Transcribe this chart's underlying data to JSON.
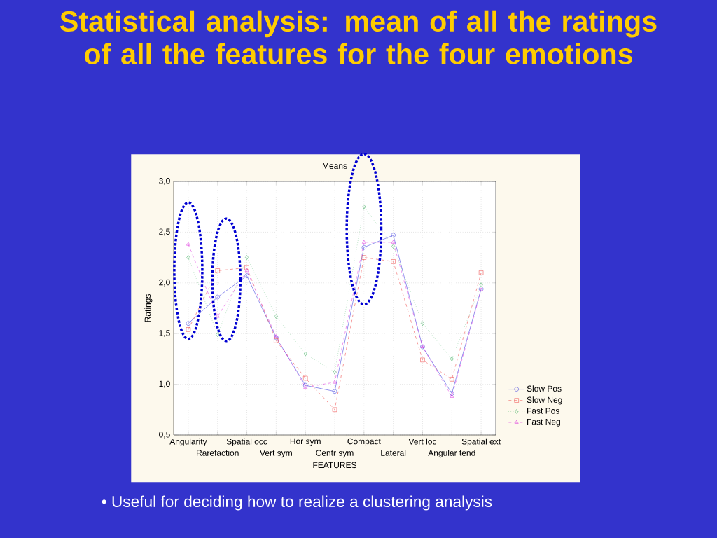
{
  "chart_data": {
    "type": "line",
    "title": "Statistical analysis: mean of all the ratings of all the features for the four emotions",
    "subtitle": "Means",
    "xlabel": "FEATURES",
    "ylabel": "Ratings",
    "categories": [
      "Angularity",
      "Rarefaction",
      "Spatial occ",
      "Vert sym",
      "Hor sym",
      "Centr sym",
      "Compact",
      "Lateral",
      "Vert loc",
      "Angular tend",
      "Spatial ext"
    ],
    "series": [
      {
        "name": "Slow Pos",
        "color": "#3333dd",
        "marker": "circle",
        "line_style": "solid",
        "values": [
          1.6,
          1.86,
          2.07,
          1.46,
          0.99,
          0.93,
          2.35,
          2.47,
          1.37,
          0.91,
          1.94
        ]
      },
      {
        "name": "Slow Neg",
        "color": "#ee4444",
        "marker": "square",
        "line_style": "dashed",
        "values": [
          1.54,
          2.12,
          2.15,
          1.43,
          1.06,
          0.75,
          2.25,
          2.21,
          1.24,
          1.05,
          2.1
        ]
      },
      {
        "name": "Fast Pos",
        "color": "#33aa55",
        "marker": "diamond",
        "line_style": "dotted",
        "values": [
          2.25,
          1.49,
          2.25,
          1.67,
          1.3,
          1.12,
          2.75,
          2.36,
          1.6,
          1.25,
          1.98
        ]
      },
      {
        "name": "Fast Neg",
        "color": "#dd33dd",
        "marker": "triangle",
        "line_style": "dashed",
        "values": [
          2.38,
          1.67,
          2.12,
          1.47,
          0.97,
          1.02,
          2.4,
          2.4,
          1.37,
          0.88,
          1.93
        ]
      }
    ],
    "ylim": [
      0.5,
      3.0
    ],
    "yticks": [
      {
        "value": 0.5,
        "label": "0,5"
      },
      {
        "value": 1.0,
        "label": "1,0"
      },
      {
        "value": 1.5,
        "label": "1,5"
      },
      {
        "value": 2.0,
        "label": "2,0"
      },
      {
        "value": 2.5,
        "label": "2,5"
      },
      {
        "value": 3.0,
        "label": "3,0"
      }
    ],
    "grid": true,
    "legend": "bottom right",
    "annotations": [
      "• Useful for deciding how to realize a clustering analysis"
    ]
  }
}
